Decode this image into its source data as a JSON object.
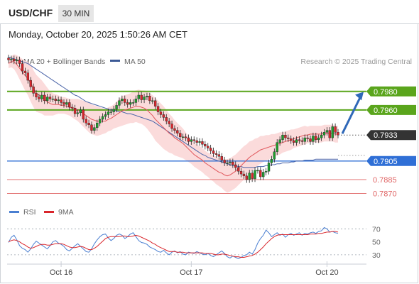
{
  "header": {
    "symbol": "USD/CHF",
    "timeframe": "30 MIN",
    "datetime": "Monday, October 20, 2025 1:50:26 AM CET"
  },
  "legend": {
    "ma20_bb": "MA 20 + Bollinger Bands",
    "ma50": "MA 50",
    "source": "Research © 2025 Trading Central",
    "rsi": "RSI",
    "ma9": "9MA"
  },
  "colors": {
    "candle_up": "#1e9e2e",
    "candle_down": "#d9262c",
    "ma20": "#e0555a",
    "ma50": "#4a64a8",
    "bb_fill": "#fbd7d7",
    "resistance": "#5aa51c",
    "pivot": "#2f6fd6",
    "support": "#e06666",
    "rsi": "#4a7fd1",
    "rsi_ma": "#d9262c",
    "arrow": "#2f68b8",
    "last_price_bg": "#333333"
  },
  "chart_data": [
    {
      "type": "candlestick",
      "title": "",
      "x_ticks": [
        "Oct 16",
        "Oct 17",
        "Oct 20"
      ],
      "ylim": [
        0.7862,
        0.8002
      ],
      "levels": [
        {
          "value": 0.798,
          "label": "0.7980",
          "kind": "resistance"
        },
        {
          "value": 0.796,
          "label": "0.7960",
          "kind": "resistance"
        },
        {
          "value": 0.7905,
          "label": "0.7905",
          "kind": "pivot"
        },
        {
          "value": 0.7885,
          "label": "0.7885",
          "kind": "support"
        },
        {
          "value": 0.787,
          "label": "0.7870",
          "kind": "support"
        }
      ],
      "last_price": {
        "value": 0.7933,
        "label": "0.7933"
      },
      "forecast_arrow": {
        "from": 0.7933,
        "to": 0.7978
      },
      "close": [
        0.8014,
        0.8015,
        0.8013,
        0.8014,
        0.801,
        0.8002,
        0.8,
        0.7992,
        0.7985,
        0.7978,
        0.7974,
        0.7972,
        0.7976,
        0.797,
        0.7974,
        0.7972,
        0.7972,
        0.797,
        0.7971,
        0.7968,
        0.7966,
        0.7968,
        0.7963,
        0.7962,
        0.7956,
        0.7957,
        0.796,
        0.795,
        0.7946,
        0.7944,
        0.7938,
        0.7941,
        0.7946,
        0.795,
        0.7953,
        0.7955,
        0.7958,
        0.7958,
        0.7961,
        0.7965,
        0.797,
        0.7972,
        0.7968,
        0.7966,
        0.7968,
        0.7968,
        0.7972,
        0.7976,
        0.7971,
        0.7974,
        0.7975,
        0.797,
        0.797,
        0.7964,
        0.7958,
        0.7955,
        0.7952,
        0.7948,
        0.7945,
        0.794,
        0.7938,
        0.7935,
        0.7931,
        0.7931,
        0.793,
        0.7926,
        0.7928,
        0.7927,
        0.7925,
        0.7926,
        0.7923,
        0.7921,
        0.7919,
        0.7916,
        0.7913,
        0.7912,
        0.791,
        0.7906,
        0.7903,
        0.7903,
        0.7904,
        0.7901,
        0.7898,
        0.7894,
        0.7891,
        0.7889,
        0.7885,
        0.7892,
        0.7886,
        0.7895,
        0.7895,
        0.7888,
        0.7893,
        0.7894,
        0.7903,
        0.7907,
        0.7915,
        0.7925,
        0.7928,
        0.7933,
        0.793,
        0.7929,
        0.7927,
        0.7925,
        0.7928,
        0.7927,
        0.7926,
        0.793,
        0.7929,
        0.7926,
        0.7932,
        0.7928,
        0.793,
        0.7933,
        0.7936,
        0.7938,
        0.793,
        0.7942,
        0.7936,
        0.7933
      ],
      "ma20": [
        0.801,
        0.8012,
        0.8012,
        0.8009,
        0.8005,
        0.8001,
        0.7997,
        0.7994,
        0.7989,
        0.7983,
        0.7978,
        0.7976,
        0.7974,
        0.7971,
        0.7969,
        0.7967,
        0.7966,
        0.7966,
        0.7966,
        0.7965,
        0.7965,
        0.7964,
        0.7963,
        0.7962,
        0.7961,
        0.796,
        0.7958,
        0.7956,
        0.7954,
        0.7952,
        0.795,
        0.7949,
        0.7948,
        0.7948,
        0.7948,
        0.7948,
        0.795,
        0.7951,
        0.7953,
        0.7955,
        0.7957,
        0.7959,
        0.796,
        0.7961,
        0.7962,
        0.7963,
        0.7964,
        0.7964,
        0.7963,
        0.7962,
        0.796,
        0.7957,
        0.7954,
        0.795,
        0.7947,
        0.7944,
        0.7941,
        0.7938,
        0.7935,
        0.7933,
        0.793,
        0.7928,
        0.7926,
        0.7924,
        0.7921,
        0.7918,
        0.7915,
        0.7912,
        0.791,
        0.7908,
        0.7906,
        0.7903,
        0.7901,
        0.7899,
        0.7897,
        0.7895,
        0.7893,
        0.7892,
        0.789,
        0.7889,
        0.789,
        0.7892,
        0.7894,
        0.7897,
        0.79,
        0.7903,
        0.7906,
        0.7909,
        0.7911,
        0.7913,
        0.7915,
        0.7917,
        0.7918,
        0.7919,
        0.792,
        0.7921,
        0.7922,
        0.7923,
        0.7924,
        0.7925,
        0.7926,
        0.7927,
        0.7928,
        0.7929,
        0.793,
        0.7931,
        0.7932,
        0.7933,
        0.7933,
        0.7934,
        0.7934,
        0.7934,
        0.7934,
        0.7934,
        0.7935,
        0.7935,
        0.7935,
        0.7935,
        0.7934,
        0.7934
      ],
      "ma50": [
        0.8017,
        0.8016,
        0.8015,
        0.8014,
        0.8013,
        0.8012,
        0.8011,
        0.801,
        0.8008,
        0.8006,
        0.8004,
        0.8002,
        0.8,
        0.7998,
        0.7996,
        0.7994,
        0.7992,
        0.799,
        0.7988,
        0.7986,
        0.7984,
        0.7982,
        0.798,
        0.7978,
        0.7976,
        0.7975,
        0.7973,
        0.7971,
        0.7969,
        0.7968,
        0.7967,
        0.7966,
        0.7965,
        0.7964,
        0.7963,
        0.7962,
        0.7961,
        0.796,
        0.796,
        0.7959,
        0.7958,
        0.7958,
        0.7957,
        0.7956,
        0.7956,
        0.7955,
        0.7954,
        0.7953,
        0.7952,
        0.7951,
        0.795,
        0.7949,
        0.7948,
        0.7946,
        0.7944,
        0.7942,
        0.794,
        0.7938,
        0.7936,
        0.7934,
        0.7932,
        0.793,
        0.7928,
        0.7926,
        0.7924,
        0.7922,
        0.792,
        0.7918,
        0.7916,
        0.7914,
        0.7912,
        0.7911,
        0.7909,
        0.7908,
        0.7907,
        0.7906,
        0.7905,
        0.7904,
        0.7903,
        0.7902,
        0.7901,
        0.79,
        0.79,
        0.7899,
        0.7899,
        0.7898,
        0.7898,
        0.7898,
        0.7898,
        0.7898,
        0.7899,
        0.7899,
        0.7899,
        0.79,
        0.79,
        0.7901,
        0.7901,
        0.7902,
        0.7902,
        0.7903,
        0.7903,
        0.7903,
        0.7904,
        0.7904,
        0.7905,
        0.7905,
        0.7905,
        0.7906,
        0.7906,
        0.7906,
        0.7906,
        0.7907,
        0.7907,
        0.7907,
        0.7907,
        0.7907,
        0.7907,
        0.7907,
        0.7907,
        0.7907
      ],
      "bb_width": [
        0.0005,
        0.0006,
        0.0008,
        0.001,
        0.0012,
        0.0014,
        0.0016,
        0.0018,
        0.002,
        0.002,
        0.002,
        0.0019,
        0.0018,
        0.0017,
        0.0015,
        0.0013,
        0.0012,
        0.0011,
        0.001,
        0.0009,
        0.0009,
        0.0009,
        0.0009,
        0.001,
        0.0011,
        0.0012,
        0.0013,
        0.0014,
        0.0015,
        0.0016,
        0.0016,
        0.0016,
        0.0016,
        0.0015,
        0.0014,
        0.0013,
        0.0013,
        0.0013,
        0.0013,
        0.0014,
        0.0015,
        0.0016,
        0.0016,
        0.0016,
        0.0016,
        0.0017,
        0.0017,
        0.0018,
        0.0018,
        0.0019,
        0.002,
        0.0021,
        0.0022,
        0.0023,
        0.0023,
        0.0023,
        0.0023,
        0.0022,
        0.0021,
        0.002,
        0.0019,
        0.0018,
        0.0017,
        0.0016,
        0.0015,
        0.0014,
        0.0013,
        0.0013,
        0.0013,
        0.0013,
        0.0013,
        0.0013,
        0.0013,
        0.0014,
        0.0014,
        0.0015,
        0.0015,
        0.0016,
        0.0017,
        0.0018,
        0.0018,
        0.0018,
        0.0018,
        0.0018,
        0.0018,
        0.0018,
        0.0017,
        0.0017,
        0.0016,
        0.0016,
        0.0015,
        0.0015,
        0.0014,
        0.0014,
        0.0013,
        0.0013,
        0.0012,
        0.0012,
        0.0012,
        0.0011,
        0.0011,
        0.0011,
        0.0011,
        0.001,
        0.001,
        0.001,
        0.001,
        0.001,
        0.0009,
        0.0009,
        0.0009,
        0.0009,
        0.0009,
        0.0009,
        0.0009,
        0.0009,
        0.0009,
        0.0009,
        0.0009,
        0.0009
      ]
    },
    {
      "type": "line",
      "title": "",
      "ylim": [
        20,
        78
      ],
      "y_ticks": [
        70,
        50,
        30
      ],
      "ref_lines": [
        70,
        30
      ],
      "series": [
        {
          "name": "RSI",
          "values": [
            49,
            57,
            60,
            53,
            44,
            40,
            38,
            34,
            39,
            46,
            51,
            48,
            45,
            42,
            39,
            44,
            50,
            52,
            48,
            46,
            43,
            38,
            36,
            40,
            44,
            47,
            43,
            39,
            35,
            34,
            39,
            47,
            53,
            58,
            61,
            62,
            56,
            52,
            55,
            60,
            62,
            60,
            55,
            58,
            62,
            64,
            58,
            52,
            49,
            48,
            46,
            42,
            40,
            38,
            35,
            34,
            37,
            33,
            30,
            34,
            36,
            33,
            35,
            31,
            30,
            34,
            33,
            32,
            35,
            33,
            31,
            30,
            32,
            29,
            27,
            30,
            33,
            36,
            32,
            27,
            25,
            28,
            26,
            24,
            26,
            29,
            30,
            34,
            31,
            38,
            48,
            55,
            60,
            68,
            64,
            58,
            61,
            64,
            60,
            62,
            57,
            61,
            63,
            60,
            62,
            64,
            60,
            63,
            62,
            64,
            65,
            63,
            66,
            67,
            72,
            70,
            65,
            66,
            64,
            63
          ]
        },
        {
          "name": "9MA",
          "values": [
            50,
            52,
            53,
            52,
            50,
            47,
            45,
            42,
            40,
            41,
            43,
            45,
            46,
            46,
            45,
            45,
            46,
            47,
            47,
            47,
            46,
            44,
            42,
            41,
            41,
            42,
            43,
            42,
            40,
            38,
            38,
            40,
            43,
            47,
            51,
            55,
            57,
            58,
            58,
            58,
            58,
            59,
            59,
            58,
            58,
            59,
            60,
            59,
            57,
            55,
            53,
            51,
            48,
            46,
            43,
            41,
            39,
            37,
            35,
            35,
            35,
            34,
            34,
            34,
            33,
            33,
            33,
            33,
            33,
            33,
            33,
            32,
            32,
            32,
            31,
            30,
            30,
            31,
            31,
            30,
            29,
            28,
            27,
            27,
            26,
            26,
            27,
            28,
            29,
            31,
            34,
            38,
            42,
            47,
            51,
            55,
            58,
            60,
            61,
            61,
            61,
            61,
            61,
            61,
            61,
            61,
            61,
            61,
            61,
            62,
            62,
            62,
            63,
            63,
            64,
            65,
            65,
            66,
            66,
            65
          ]
        }
      ]
    }
  ]
}
